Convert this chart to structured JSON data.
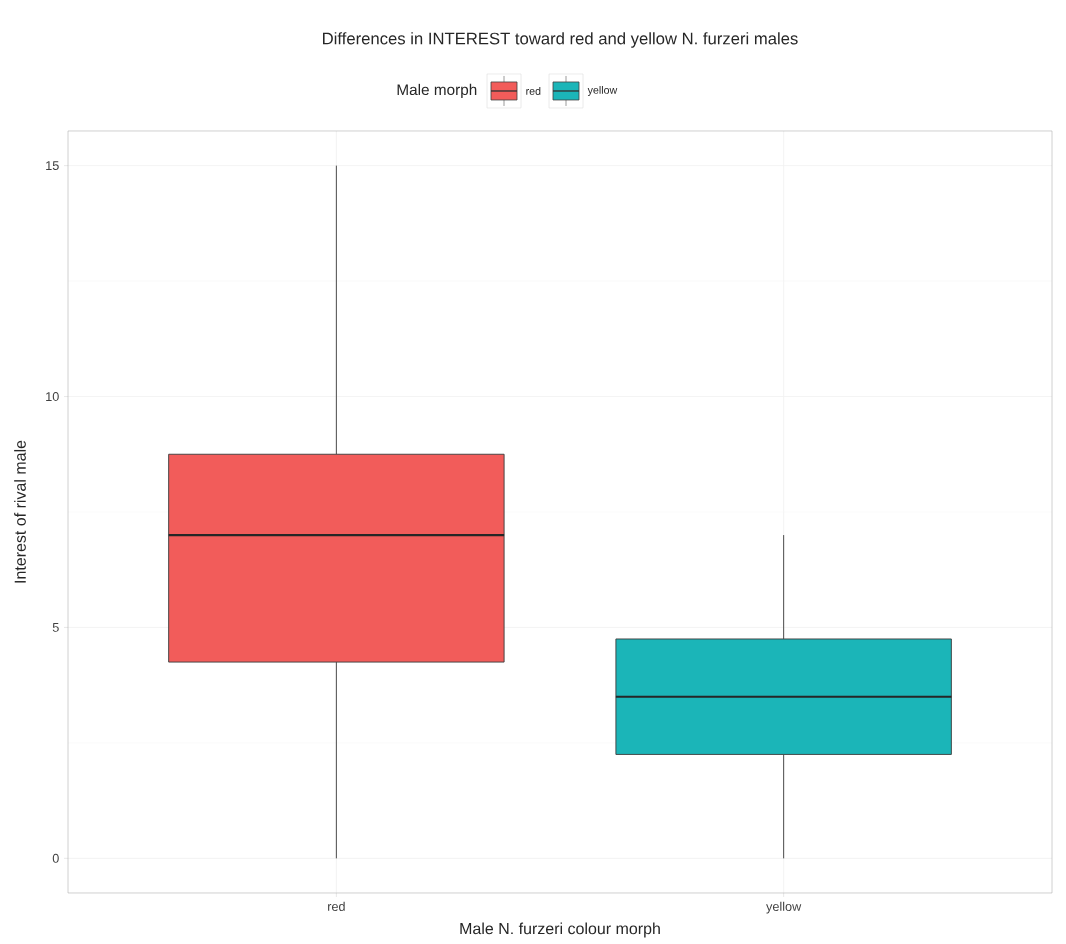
{
  "chart_data": {
    "type": "box",
    "title": "Differences in INTEREST toward red and yellow N. furzeri males",
    "xlabel": "Male N. furzeri colour morph",
    "ylabel": "Interest of rival male",
    "legend_title": "Male morph",
    "categories": [
      "red",
      "yellow"
    ],
    "series": [
      {
        "name": "red",
        "color": "#f25c5a",
        "boxes": [
          {
            "low": 0,
            "q1": 4.25,
            "median": 7,
            "q3": 8.75,
            "high": 15
          },
          null
        ]
      },
      {
        "name": "yellow",
        "color": "#1bb5b8",
        "boxes": [
          null,
          {
            "low": 0,
            "q1": 2.25,
            "median": 3.5,
            "q3": 4.75,
            "high": 7
          }
        ]
      }
    ],
    "ylim": [
      -0.75,
      15.75
    ],
    "yticks": [
      0,
      5,
      10,
      15
    ],
    "grid": true,
    "legend": "top"
  }
}
